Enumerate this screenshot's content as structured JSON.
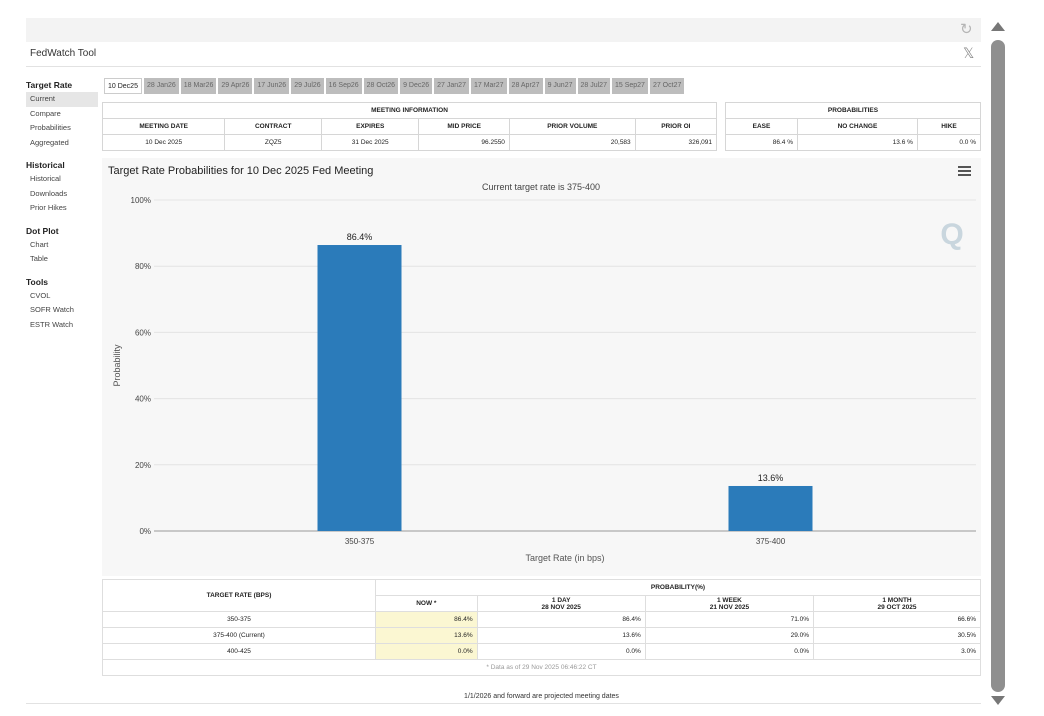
{
  "app": {
    "title": "FedWatch Tool",
    "refresh_icon": "refresh-icon",
    "share_icon": "x-icon"
  },
  "sidebar": {
    "groups": [
      {
        "heading": "Target Rate",
        "items": [
          "Current",
          "Compare",
          "Probabilities",
          "Aggregated"
        ],
        "active": "Current"
      },
      {
        "heading": "Historical",
        "items": [
          "Historical",
          "Downloads",
          "Prior Hikes"
        ]
      },
      {
        "heading": "Dot Plot",
        "items": [
          "Chart",
          "Table"
        ]
      },
      {
        "heading": "Tools",
        "items": [
          "CVOL",
          "SOFR Watch",
          "ESTR Watch"
        ]
      }
    ]
  },
  "meeting_tabs": [
    "10 Dec25",
    "28 Jan26",
    "18 Mar26",
    "29 Apr26",
    "17 Jun26",
    "29 Jul26",
    "16 Sep26",
    "28 Oct26",
    "9 Dec26",
    "27 Jan27",
    "17 Mar27",
    "28 Apr27",
    "9 Jun27",
    "28 Jul27",
    "15 Sep27",
    "27 Oct27"
  ],
  "active_tab": "10 Dec25",
  "meeting_info": {
    "heading": "MEETING INFORMATION",
    "columns": [
      "MEETING DATE",
      "CONTRACT",
      "EXPIRES",
      "MID PRICE",
      "PRIOR VOLUME",
      "PRIOR OI"
    ],
    "row": [
      "10 Dec 2025",
      "ZQZ5",
      "31 Dec 2025",
      "96.2550",
      "20,583",
      "326,091"
    ]
  },
  "probabilities": {
    "heading": "PROBABILITIES",
    "columns": [
      "EASE",
      "NO CHANGE",
      "HIKE"
    ],
    "row": [
      "86.4 %",
      "13.6 %",
      "0.0 %"
    ]
  },
  "chart": {
    "title": "Target Rate Probabilities for 10 Dec 2025 Fed Meeting",
    "subtitle": "Current target rate is 375-400",
    "menu_icon": "hamburger-menu-icon",
    "watermark_icon": "q-logo-icon"
  },
  "chart_data": {
    "type": "bar",
    "categories": [
      "350-375",
      "375-400"
    ],
    "values": [
      86.4,
      13.6
    ],
    "data_labels": [
      "86.4%",
      "13.6%"
    ],
    "xlabel": "Target Rate (in bps)",
    "ylabel": "Probability",
    "ylim": [
      0,
      100
    ],
    "yticks": [
      "0%",
      "20%",
      "40%",
      "60%",
      "80%",
      "100%"
    ],
    "grid": true,
    "bar_color": "#2b7bba"
  },
  "history_table": {
    "target_rate_header": "TARGET RATE (BPS)",
    "probability_header": "PROBABILITY(%)",
    "columns": [
      {
        "label": "NOW *",
        "date": ""
      },
      {
        "label": "1 DAY",
        "date": "28 NOV 2025"
      },
      {
        "label": "1 WEEK",
        "date": "21 NOV 2025"
      },
      {
        "label": "1 MONTH",
        "date": "29 OCT 2025"
      }
    ],
    "rows": [
      {
        "rate": "350-375",
        "values": [
          "86.4%",
          "86.4%",
          "71.0%",
          "66.6%"
        ]
      },
      {
        "rate": "375-400 (Current)",
        "values": [
          "13.6%",
          "13.6%",
          "29.0%",
          "30.5%"
        ]
      },
      {
        "rate": "400-425",
        "values": [
          "0.0%",
          "0.0%",
          "0.0%",
          "3.0%"
        ]
      }
    ],
    "footnote": "* Data as of 29 Nov 2025 06:46:22 CT"
  },
  "projected_note": "1/1/2026 and forward are projected meeting dates",
  "colors": {
    "accent_bar": "#2b7bba",
    "now_highlight": "#fbf7d2",
    "tab_inactive": "#bdbdbd"
  }
}
